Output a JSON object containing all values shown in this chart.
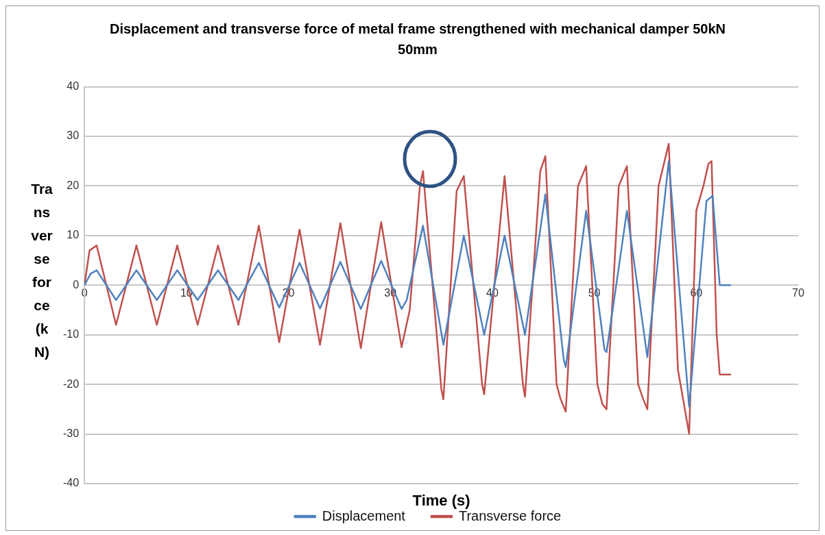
{
  "chart_data": {
    "type": "line",
    "title": "Displacement and transverse force of metal frame strengthened with mechanical damper 50kN 50mm",
    "xlabel": "Time (s)",
    "ylabel": "Transverse force (kN)",
    "xlim": [
      0,
      70
    ],
    "xticks": [
      0,
      10,
      20,
      30,
      40,
      50,
      60,
      70
    ],
    "ylim": [
      -40,
      40
    ],
    "yticks": [
      -40,
      -30,
      -20,
      -10,
      0,
      10,
      20,
      30,
      40
    ],
    "grid": "y",
    "legend": "bottom",
    "marker": "none",
    "line_style": "solid",
    "series": [
      {
        "name": "Displacement",
        "color": "#4f81bd",
        "x": [
          0,
          0.6,
          1.2,
          3.1,
          5.1,
          7.1,
          9.1,
          11.1,
          13.1,
          15.1,
          17.1,
          19.1,
          21.1,
          23.1,
          25.1,
          27.1,
          29.1,
          31.1,
          31.6,
          33.2,
          35.2,
          37.2,
          39.2,
          41.2,
          43.2,
          45.2,
          47.0,
          47.2,
          49.2,
          51.0,
          51.2,
          53.2,
          55.2,
          57.3,
          59.3,
          61.0,
          61.6,
          62.3,
          63.4
        ],
        "values": [
          0,
          2.3,
          3,
          -3,
          3,
          -3,
          3,
          -3,
          3,
          -3,
          4.5,
          -4.5,
          4.5,
          -4.7,
          4.7,
          -4.8,
          4.9,
          -4.8,
          -3,
          12,
          -12,
          10,
          -10,
          10,
          -10,
          18.3,
          -15,
          -16.5,
          15,
          -13,
          -13.5,
          15,
          -14.5,
          25,
          -24.5,
          17,
          18,
          0,
          0
        ]
      },
      {
        "name": "Transverse force",
        "color": "#c0504d",
        "x": [
          0,
          0.5,
          1.2,
          3.1,
          5.1,
          7.1,
          9.1,
          11.1,
          13.1,
          15.1,
          17.1,
          19.1,
          21.1,
          23.1,
          25.1,
          27.1,
          29.1,
          31.1,
          31.9,
          32.9,
          33.2,
          35.0,
          35.2,
          36.5,
          37.2,
          39.0,
          39.2,
          41.2,
          43.0,
          43.2,
          44.7,
          45.2,
          46.3,
          46.7,
          47.2,
          48.4,
          49.2,
          50.3,
          50.8,
          51.2,
          52.4,
          53.2,
          54.3,
          54.8,
          55.2,
          56.3,
          57.3,
          58.2,
          59.3,
          60.0,
          60.7,
          61.2,
          61.5,
          62.0,
          62.3,
          63.4
        ],
        "values": [
          0,
          7,
          8,
          -8,
          8,
          -8,
          8,
          -8,
          8,
          -8,
          12,
          -11.5,
          11.2,
          -12,
          12.5,
          -12.7,
          12.7,
          -12.5,
          -5,
          20,
          23,
          -21,
          -23,
          19,
          22,
          -20,
          -22,
          22,
          -20,
          -22.5,
          23,
          26,
          -20,
          -23,
          -25.5,
          20,
          24,
          -20,
          -24,
          -25,
          20,
          24,
          -20,
          -23,
          -25,
          20,
          28.5,
          -17,
          -30,
          15,
          20,
          24.5,
          25,
          -10,
          -18,
          -18
        ]
      }
    ]
  }
}
